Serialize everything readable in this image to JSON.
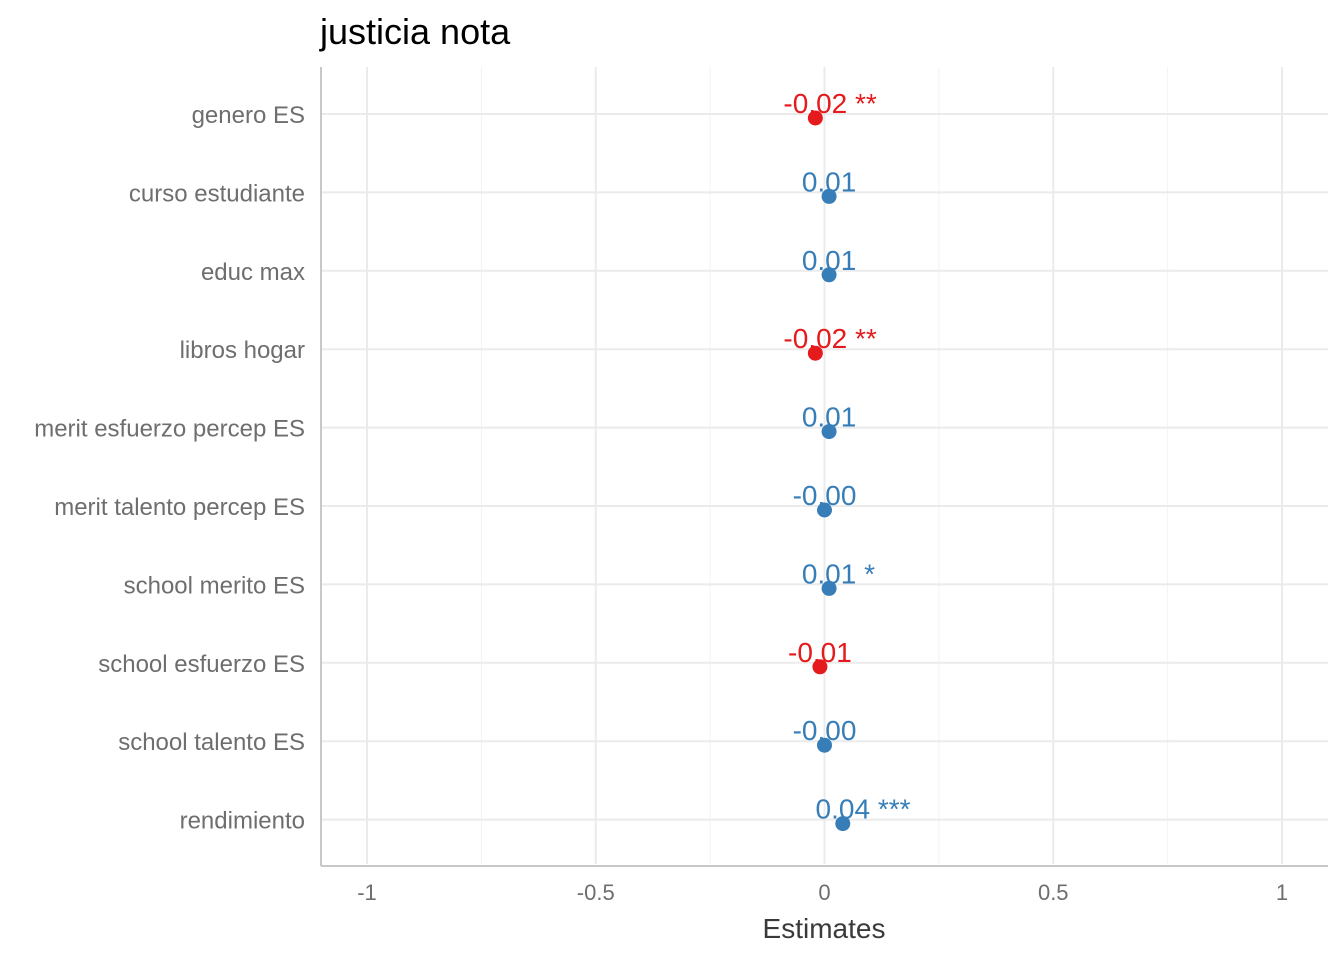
{
  "chart_data": {
    "type": "scatter",
    "title": "justicia nota",
    "xlabel": "Estimates",
    "ylabel": "",
    "xlim": [
      -1.1,
      1.1
    ],
    "x_ticks": [
      -1,
      -0.5,
      0,
      0.5,
      1
    ],
    "x_tick_labels": [
      "-1",
      "-0.5",
      "0",
      "0.5",
      "1"
    ],
    "grid": true,
    "legend": "none",
    "colors": {
      "positive": "#377EB8",
      "negative": "#E41A1C"
    },
    "terms": [
      {
        "label": "genero ES",
        "estimate": -0.02,
        "text": "-0.02 **"
      },
      {
        "label": "curso estudiante",
        "estimate": 0.01,
        "text": "0.01"
      },
      {
        "label": "educ max",
        "estimate": 0.01,
        "text": "0.01"
      },
      {
        "label": "libros hogar",
        "estimate": -0.02,
        "text": "-0.02 **"
      },
      {
        "label": "merit esfuerzo percep ES",
        "estimate": 0.01,
        "text": "0.01"
      },
      {
        "label": "merit talento percep ES",
        "estimate": -0.0,
        "text": "-0.00"
      },
      {
        "label": "school merito ES",
        "estimate": 0.01,
        "text": "0.01 *"
      },
      {
        "label": "school esfuerzo ES",
        "estimate": -0.01,
        "text": "-0.01"
      },
      {
        "label": "school talento ES",
        "estimate": -0.0,
        "text": "-0.00"
      },
      {
        "label": "rendimiento",
        "estimate": 0.04,
        "text": "0.04 ***"
      }
    ]
  }
}
